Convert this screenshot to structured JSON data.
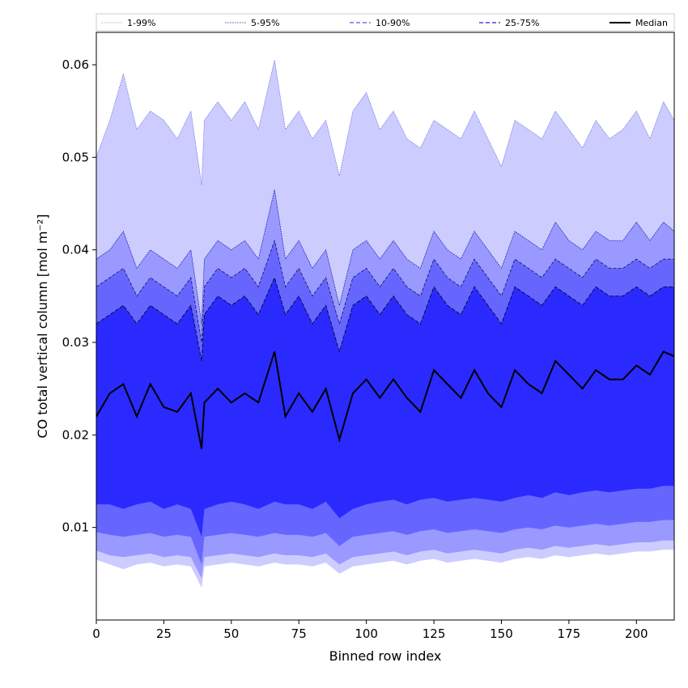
{
  "chart_data": {
    "type": "area",
    "xlabel": "Binned row index",
    "ylabel": "CO total vertical column [mol m⁻²]",
    "xlim": [
      0,
      214
    ],
    "ylim": [
      0,
      0.0635
    ],
    "x_ticks": [
      0,
      25,
      50,
      75,
      100,
      125,
      150,
      175,
      200
    ],
    "y_ticks": [
      0.01,
      0.02,
      0.03,
      0.04,
      0.05,
      0.06
    ],
    "grid": false,
    "legend_position": "top (horizontal, above plot)",
    "band_colors": {
      "1-99%": "#ccccff",
      "5-95%": "#9999ff",
      "10-90%": "#6666ff",
      "25-75%": "#2a2aff"
    },
    "median_color": "#000000",
    "x_nodes": [
      0,
      5,
      10,
      15,
      20,
      25,
      30,
      35,
      39,
      40,
      45,
      50,
      55,
      60,
      66,
      70,
      75,
      80,
      85,
      90,
      95,
      100,
      105,
      110,
      115,
      120,
      125,
      130,
      135,
      140,
      145,
      150,
      155,
      160,
      165,
      170,
      175,
      180,
      185,
      190,
      195,
      200,
      205,
      210,
      214
    ],
    "series": [
      {
        "name": "1-99%",
        "lower": [
          0.0065,
          0.006,
          0.0055,
          0.006,
          0.0062,
          0.0058,
          0.006,
          0.0058,
          0.0035,
          0.0058,
          0.006,
          0.0062,
          0.006,
          0.0058,
          0.0062,
          0.006,
          0.006,
          0.0058,
          0.0062,
          0.005,
          0.0058,
          0.006,
          0.0062,
          0.0064,
          0.006,
          0.0064,
          0.0066,
          0.0062,
          0.0064,
          0.0066,
          0.0064,
          0.0062,
          0.0066,
          0.0068,
          0.0066,
          0.007,
          0.0068,
          0.007,
          0.0072,
          0.007,
          0.0072,
          0.0074,
          0.0074,
          0.0076,
          0.0076
        ],
        "upper": [
          0.05,
          0.054,
          0.059,
          0.053,
          0.055,
          0.054,
          0.052,
          0.055,
          0.047,
          0.054,
          0.056,
          0.054,
          0.056,
          0.053,
          0.0605,
          0.053,
          0.055,
          0.052,
          0.054,
          0.048,
          0.055,
          0.057,
          0.053,
          0.055,
          0.052,
          0.051,
          0.054,
          0.053,
          0.052,
          0.055,
          0.052,
          0.049,
          0.054,
          0.053,
          0.052,
          0.055,
          0.053,
          0.051,
          0.054,
          0.052,
          0.053,
          0.055,
          0.052,
          0.056,
          0.054
        ]
      },
      {
        "name": "5-95%",
        "lower": [
          0.0075,
          0.007,
          0.0068,
          0.007,
          0.0072,
          0.0068,
          0.007,
          0.0068,
          0.0045,
          0.0068,
          0.007,
          0.0072,
          0.007,
          0.0068,
          0.0072,
          0.007,
          0.007,
          0.0068,
          0.0072,
          0.006,
          0.0068,
          0.007,
          0.0072,
          0.0074,
          0.007,
          0.0074,
          0.0076,
          0.0072,
          0.0074,
          0.0076,
          0.0074,
          0.0072,
          0.0076,
          0.0078,
          0.0076,
          0.008,
          0.0078,
          0.008,
          0.0082,
          0.008,
          0.0082,
          0.0084,
          0.0084,
          0.0086,
          0.0086
        ],
        "upper": [
          0.039,
          0.04,
          0.042,
          0.038,
          0.04,
          0.039,
          0.038,
          0.04,
          0.032,
          0.039,
          0.041,
          0.04,
          0.041,
          0.039,
          0.0465,
          0.039,
          0.041,
          0.038,
          0.04,
          0.034,
          0.04,
          0.041,
          0.039,
          0.041,
          0.039,
          0.038,
          0.042,
          0.04,
          0.039,
          0.042,
          0.04,
          0.038,
          0.042,
          0.041,
          0.04,
          0.043,
          0.041,
          0.04,
          0.042,
          0.041,
          0.041,
          0.043,
          0.041,
          0.043,
          0.042
        ]
      },
      {
        "name": "10-90%",
        "lower": [
          0.0095,
          0.0092,
          0.009,
          0.0092,
          0.0094,
          0.009,
          0.0092,
          0.009,
          0.006,
          0.009,
          0.0092,
          0.0094,
          0.0092,
          0.009,
          0.0094,
          0.0092,
          0.0092,
          0.009,
          0.0094,
          0.008,
          0.009,
          0.0092,
          0.0094,
          0.0096,
          0.0092,
          0.0096,
          0.0098,
          0.0094,
          0.0096,
          0.0098,
          0.0096,
          0.0094,
          0.0098,
          0.01,
          0.0098,
          0.0102,
          0.01,
          0.0102,
          0.0104,
          0.0102,
          0.0104,
          0.0106,
          0.0106,
          0.0108,
          0.0108
        ],
        "upper": [
          0.036,
          0.037,
          0.038,
          0.035,
          0.037,
          0.036,
          0.035,
          0.037,
          0.03,
          0.036,
          0.038,
          0.037,
          0.038,
          0.036,
          0.041,
          0.036,
          0.038,
          0.035,
          0.037,
          0.032,
          0.037,
          0.038,
          0.036,
          0.038,
          0.036,
          0.035,
          0.039,
          0.037,
          0.036,
          0.039,
          0.037,
          0.035,
          0.039,
          0.038,
          0.037,
          0.039,
          0.038,
          0.037,
          0.039,
          0.038,
          0.038,
          0.039,
          0.038,
          0.039,
          0.039
        ]
      },
      {
        "name": "25-75%",
        "lower": [
          0.0125,
          0.0125,
          0.012,
          0.0125,
          0.0128,
          0.012,
          0.0125,
          0.012,
          0.009,
          0.012,
          0.0125,
          0.0128,
          0.0125,
          0.012,
          0.0128,
          0.0125,
          0.0125,
          0.012,
          0.0128,
          0.011,
          0.012,
          0.0125,
          0.0128,
          0.013,
          0.0125,
          0.013,
          0.0132,
          0.0128,
          0.013,
          0.0132,
          0.013,
          0.0128,
          0.0132,
          0.0135,
          0.0132,
          0.0138,
          0.0135,
          0.0138,
          0.014,
          0.0138,
          0.014,
          0.0142,
          0.0142,
          0.0145,
          0.0145
        ],
        "upper": [
          0.032,
          0.033,
          0.034,
          0.032,
          0.034,
          0.033,
          0.032,
          0.034,
          0.028,
          0.033,
          0.035,
          0.034,
          0.035,
          0.033,
          0.037,
          0.033,
          0.035,
          0.032,
          0.034,
          0.029,
          0.034,
          0.035,
          0.033,
          0.035,
          0.033,
          0.032,
          0.036,
          0.034,
          0.033,
          0.036,
          0.034,
          0.032,
          0.036,
          0.035,
          0.034,
          0.036,
          0.035,
          0.034,
          0.036,
          0.035,
          0.035,
          0.036,
          0.035,
          0.036,
          0.036
        ]
      },
      {
        "name": "Median",
        "values": [
          0.022,
          0.0245,
          0.0255,
          0.022,
          0.0255,
          0.023,
          0.0225,
          0.0245,
          0.0185,
          0.0235,
          0.025,
          0.0235,
          0.0245,
          0.0235,
          0.029,
          0.022,
          0.0245,
          0.0225,
          0.025,
          0.0195,
          0.0245,
          0.026,
          0.024,
          0.026,
          0.024,
          0.0225,
          0.027,
          0.0255,
          0.024,
          0.027,
          0.0245,
          0.023,
          0.027,
          0.0255,
          0.0245,
          0.028,
          0.0265,
          0.025,
          0.027,
          0.026,
          0.026,
          0.0275,
          0.0265,
          0.029,
          0.0285
        ]
      }
    ]
  }
}
